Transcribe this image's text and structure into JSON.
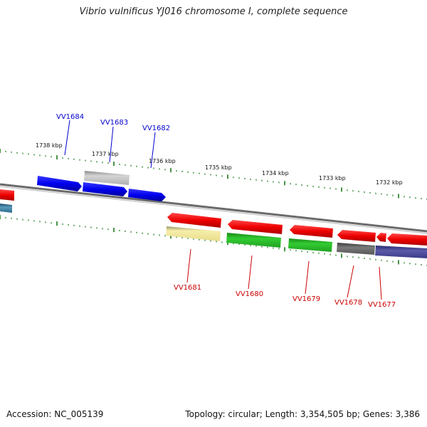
{
  "title": "Vibrio vulnificus YJ016 chromosome I, complete sequence",
  "footer": {
    "accession": "Accession: NC_005139",
    "topology": "Topology: circular; Length: 3,354,505 bp; Genes: 3,386"
  },
  "kbp_labels": {
    "k1738": "1738 kbp",
    "k1737": "1737 kbp",
    "k1736": "1736 kbp",
    "k1735": "1735 kbp",
    "k1734": "1734 kbp",
    "k1733": "1733 kbp",
    "k1732": "1732 kbp"
  },
  "genes": {
    "vv1684": "VV1684",
    "vv1683": "VV1683",
    "vv1682": "VV1682",
    "vv1681": "VV1681",
    "vv1680": "VV1680",
    "vv1679": "VV1679",
    "vv1678": "VV1678",
    "vv1677": "VV1677"
  },
  "colors": {
    "plus_label": "#0000cc",
    "minus_label": "#cc0000",
    "tick": "#1a7a1a",
    "backbone": "#888888"
  }
}
